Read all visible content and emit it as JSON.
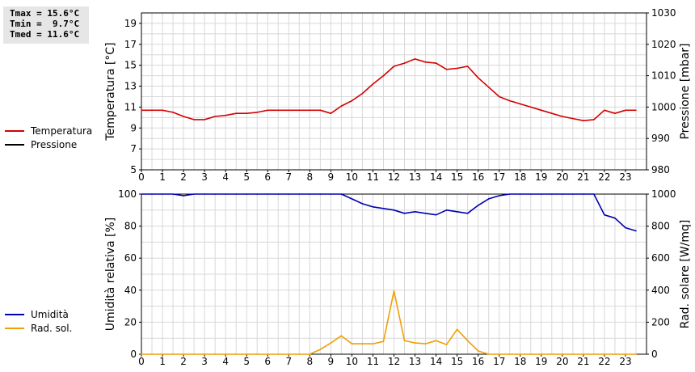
{
  "stats": {
    "tmax": "Tmax = 15.6°C",
    "tmin": "Tmin =  9.7°C",
    "tmed": "Tmed = 11.6°C"
  },
  "legend_top": [
    {
      "label": "Temperatura",
      "color": "#d40000"
    },
    {
      "label": "Pressione",
      "color": "#000000"
    }
  ],
  "legend_bottom": [
    {
      "label": "Umidità",
      "color": "#0000b4"
    },
    {
      "label": "Rad. sol.",
      "color": "#f0a000"
    }
  ],
  "chart_data": [
    {
      "type": "line",
      "xlabel": "",
      "ylabel_left": "Temperatura [°C]",
      "ylabel_right": "Pressione [mbar]",
      "xlim": [
        0,
        24
      ],
      "xticks": [
        0,
        1,
        2,
        3,
        4,
        5,
        6,
        7,
        8,
        9,
        10,
        11,
        12,
        13,
        14,
        15,
        16,
        17,
        18,
        19,
        20,
        21,
        22,
        23
      ],
      "ylim_left": [
        5,
        20
      ],
      "yticks_left": [
        5,
        7,
        9,
        11,
        13,
        15,
        17,
        19
      ],
      "ylim_right": [
        980,
        1030
      ],
      "yticks_right": [
        980,
        990,
        1000,
        1010,
        1020,
        1030
      ],
      "grid": true,
      "series": [
        {
          "name": "Temperatura",
          "axis": "left",
          "color": "#d40000",
          "x": [
            0,
            0.5,
            1,
            1.5,
            2,
            2.5,
            3,
            3.5,
            4,
            4.5,
            5,
            5.5,
            6,
            6.5,
            7,
            7.5,
            8,
            8.5,
            9,
            9.5,
            10,
            10.5,
            11,
            11.5,
            12,
            12.5,
            13,
            13.5,
            14,
            14.5,
            15,
            15.5,
            16,
            16.5,
            17,
            17.5,
            18,
            18.5,
            19,
            19.5,
            20,
            20.5,
            21,
            21.5,
            22,
            22.5,
            23,
            23.5
          ],
          "values": [
            10.7,
            10.7,
            10.7,
            10.5,
            10.1,
            9.8,
            9.8,
            10.1,
            10.2,
            10.4,
            10.4,
            10.5,
            10.7,
            10.7,
            10.7,
            10.7,
            10.7,
            10.7,
            10.4,
            11.1,
            11.6,
            12.3,
            13.2,
            14.0,
            14.9,
            15.2,
            15.6,
            15.3,
            15.2,
            14.6,
            14.7,
            14.9,
            13.8,
            12.9,
            12.0,
            11.6,
            11.3,
            11.0,
            10.7,
            10.4,
            10.1,
            9.9,
            9.7,
            9.8,
            10.7,
            10.4,
            10.7,
            10.7
          ]
        },
        {
          "name": "Pressione",
          "axis": "right",
          "color": "#000000",
          "x": [],
          "values": []
        }
      ]
    },
    {
      "type": "line",
      "xlabel": "",
      "ylabel_left": "Umidità relativa [%]",
      "ylabel_right": "Rad. solare [W/mq]",
      "xlim": [
        0,
        24
      ],
      "xticks": [
        0,
        1,
        2,
        3,
        4,
        5,
        6,
        7,
        8,
        9,
        10,
        11,
        12,
        13,
        14,
        15,
        16,
        17,
        18,
        19,
        20,
        21,
        22,
        23
      ],
      "ylim_left": [
        0,
        100
      ],
      "yticks_left": [
        0,
        20,
        40,
        60,
        80,
        100
      ],
      "ylim_right": [
        0,
        1000
      ],
      "yticks_right": [
        0,
        200,
        400,
        600,
        800,
        1000
      ],
      "grid": true,
      "series": [
        {
          "name": "Umidità",
          "axis": "left",
          "color": "#0000b4",
          "x": [
            0,
            0.5,
            1,
            1.5,
            2,
            2.5,
            3,
            3.5,
            4,
            4.5,
            5,
            5.5,
            6,
            6.5,
            7,
            7.5,
            8,
            8.5,
            9,
            9.5,
            10,
            10.5,
            11,
            11.5,
            12,
            12.5,
            13,
            13.5,
            14,
            14.5,
            15,
            15.5,
            16,
            16.5,
            17,
            17.5,
            18,
            18.5,
            19,
            19.5,
            20,
            20.5,
            21,
            21.5,
            22,
            22.5,
            23,
            23.5
          ],
          "values": [
            100,
            100,
            100,
            100,
            99,
            100,
            100,
            100,
            100,
            100,
            100,
            100,
            100,
            100,
            100,
            100,
            100,
            100,
            100,
            100,
            97,
            94,
            92,
            91,
            90,
            88,
            89,
            88,
            87,
            90,
            89,
            88,
            93,
            97,
            99,
            100,
            100,
            100,
            100,
            100,
            100,
            100,
            100,
            100,
            87,
            85,
            79,
            77
          ]
        },
        {
          "name": "Rad. sol.",
          "axis": "right",
          "color": "#f0a000",
          "x": [
            0,
            0.5,
            1,
            1.5,
            2,
            2.5,
            3,
            3.5,
            4,
            4.5,
            5,
            5.5,
            6,
            6.5,
            7,
            7.5,
            8,
            8.5,
            9,
            9.5,
            10,
            10.5,
            11,
            11.5,
            12,
            12.5,
            13,
            13.5,
            14,
            14.5,
            15,
            15.5,
            16,
            16.5,
            17,
            17.5,
            18,
            18.5,
            19,
            19.5,
            20,
            20.5,
            21,
            21.5,
            22,
            22.5,
            23,
            23.5
          ],
          "values": [
            0,
            0,
            0,
            0,
            0,
            0,
            0,
            0,
            0,
            0,
            0,
            0,
            0,
            0,
            0,
            0,
            0,
            30,
            70,
            115,
            65,
            65,
            65,
            80,
            395,
            85,
            70,
            65,
            85,
            60,
            155,
            85,
            20,
            0,
            0,
            0,
            0,
            0,
            0,
            0,
            0,
            0,
            0,
            0,
            0,
            0,
            0,
            0
          ]
        }
      ]
    }
  ]
}
